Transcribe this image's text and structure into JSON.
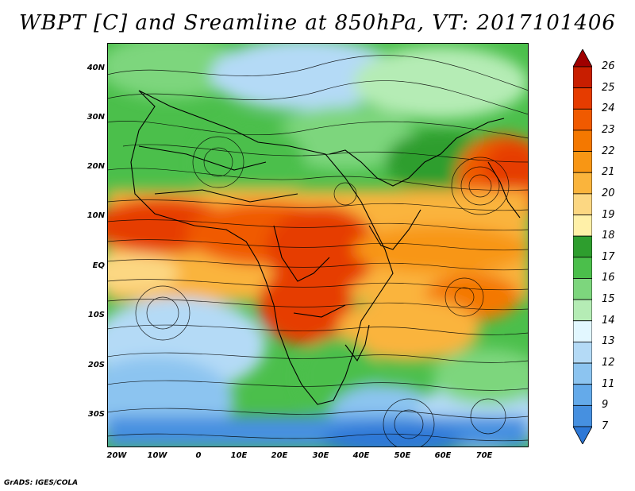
{
  "title": "WBPT [C] and Sreamline at 850hPa, VT: 2017101406",
  "credit": "GrADS: IGES/COLA",
  "map": {
    "lat_labels": [
      "40N",
      "30N",
      "20N",
      "10N",
      "EQ",
      "10S",
      "20S",
      "30S"
    ],
    "lon_labels": [
      "20W",
      "10W",
      "0",
      "10E",
      "20E",
      "30E",
      "40E",
      "50E",
      "60E",
      "70E"
    ]
  },
  "colorbar": {
    "labels": [
      "26",
      "25",
      "24",
      "23",
      "22",
      "21",
      "20",
      "19",
      "18",
      "17",
      "16",
      "15",
      "14",
      "13",
      "12",
      "11",
      "9",
      "7"
    ],
    "colors": [
      "#a00000",
      "#c81e00",
      "#e63c00",
      "#f05a00",
      "#f47800",
      "#f89614",
      "#fab43c",
      "#fcd782",
      "#fff0a8",
      "#2e9e2e",
      "#4bbf4b",
      "#7dd67d",
      "#b5ecb5",
      "#e2f7ff",
      "#b4daf6",
      "#8cc4f0",
      "#64aaea",
      "#4690e0",
      "#2d78d7"
    ]
  }
}
